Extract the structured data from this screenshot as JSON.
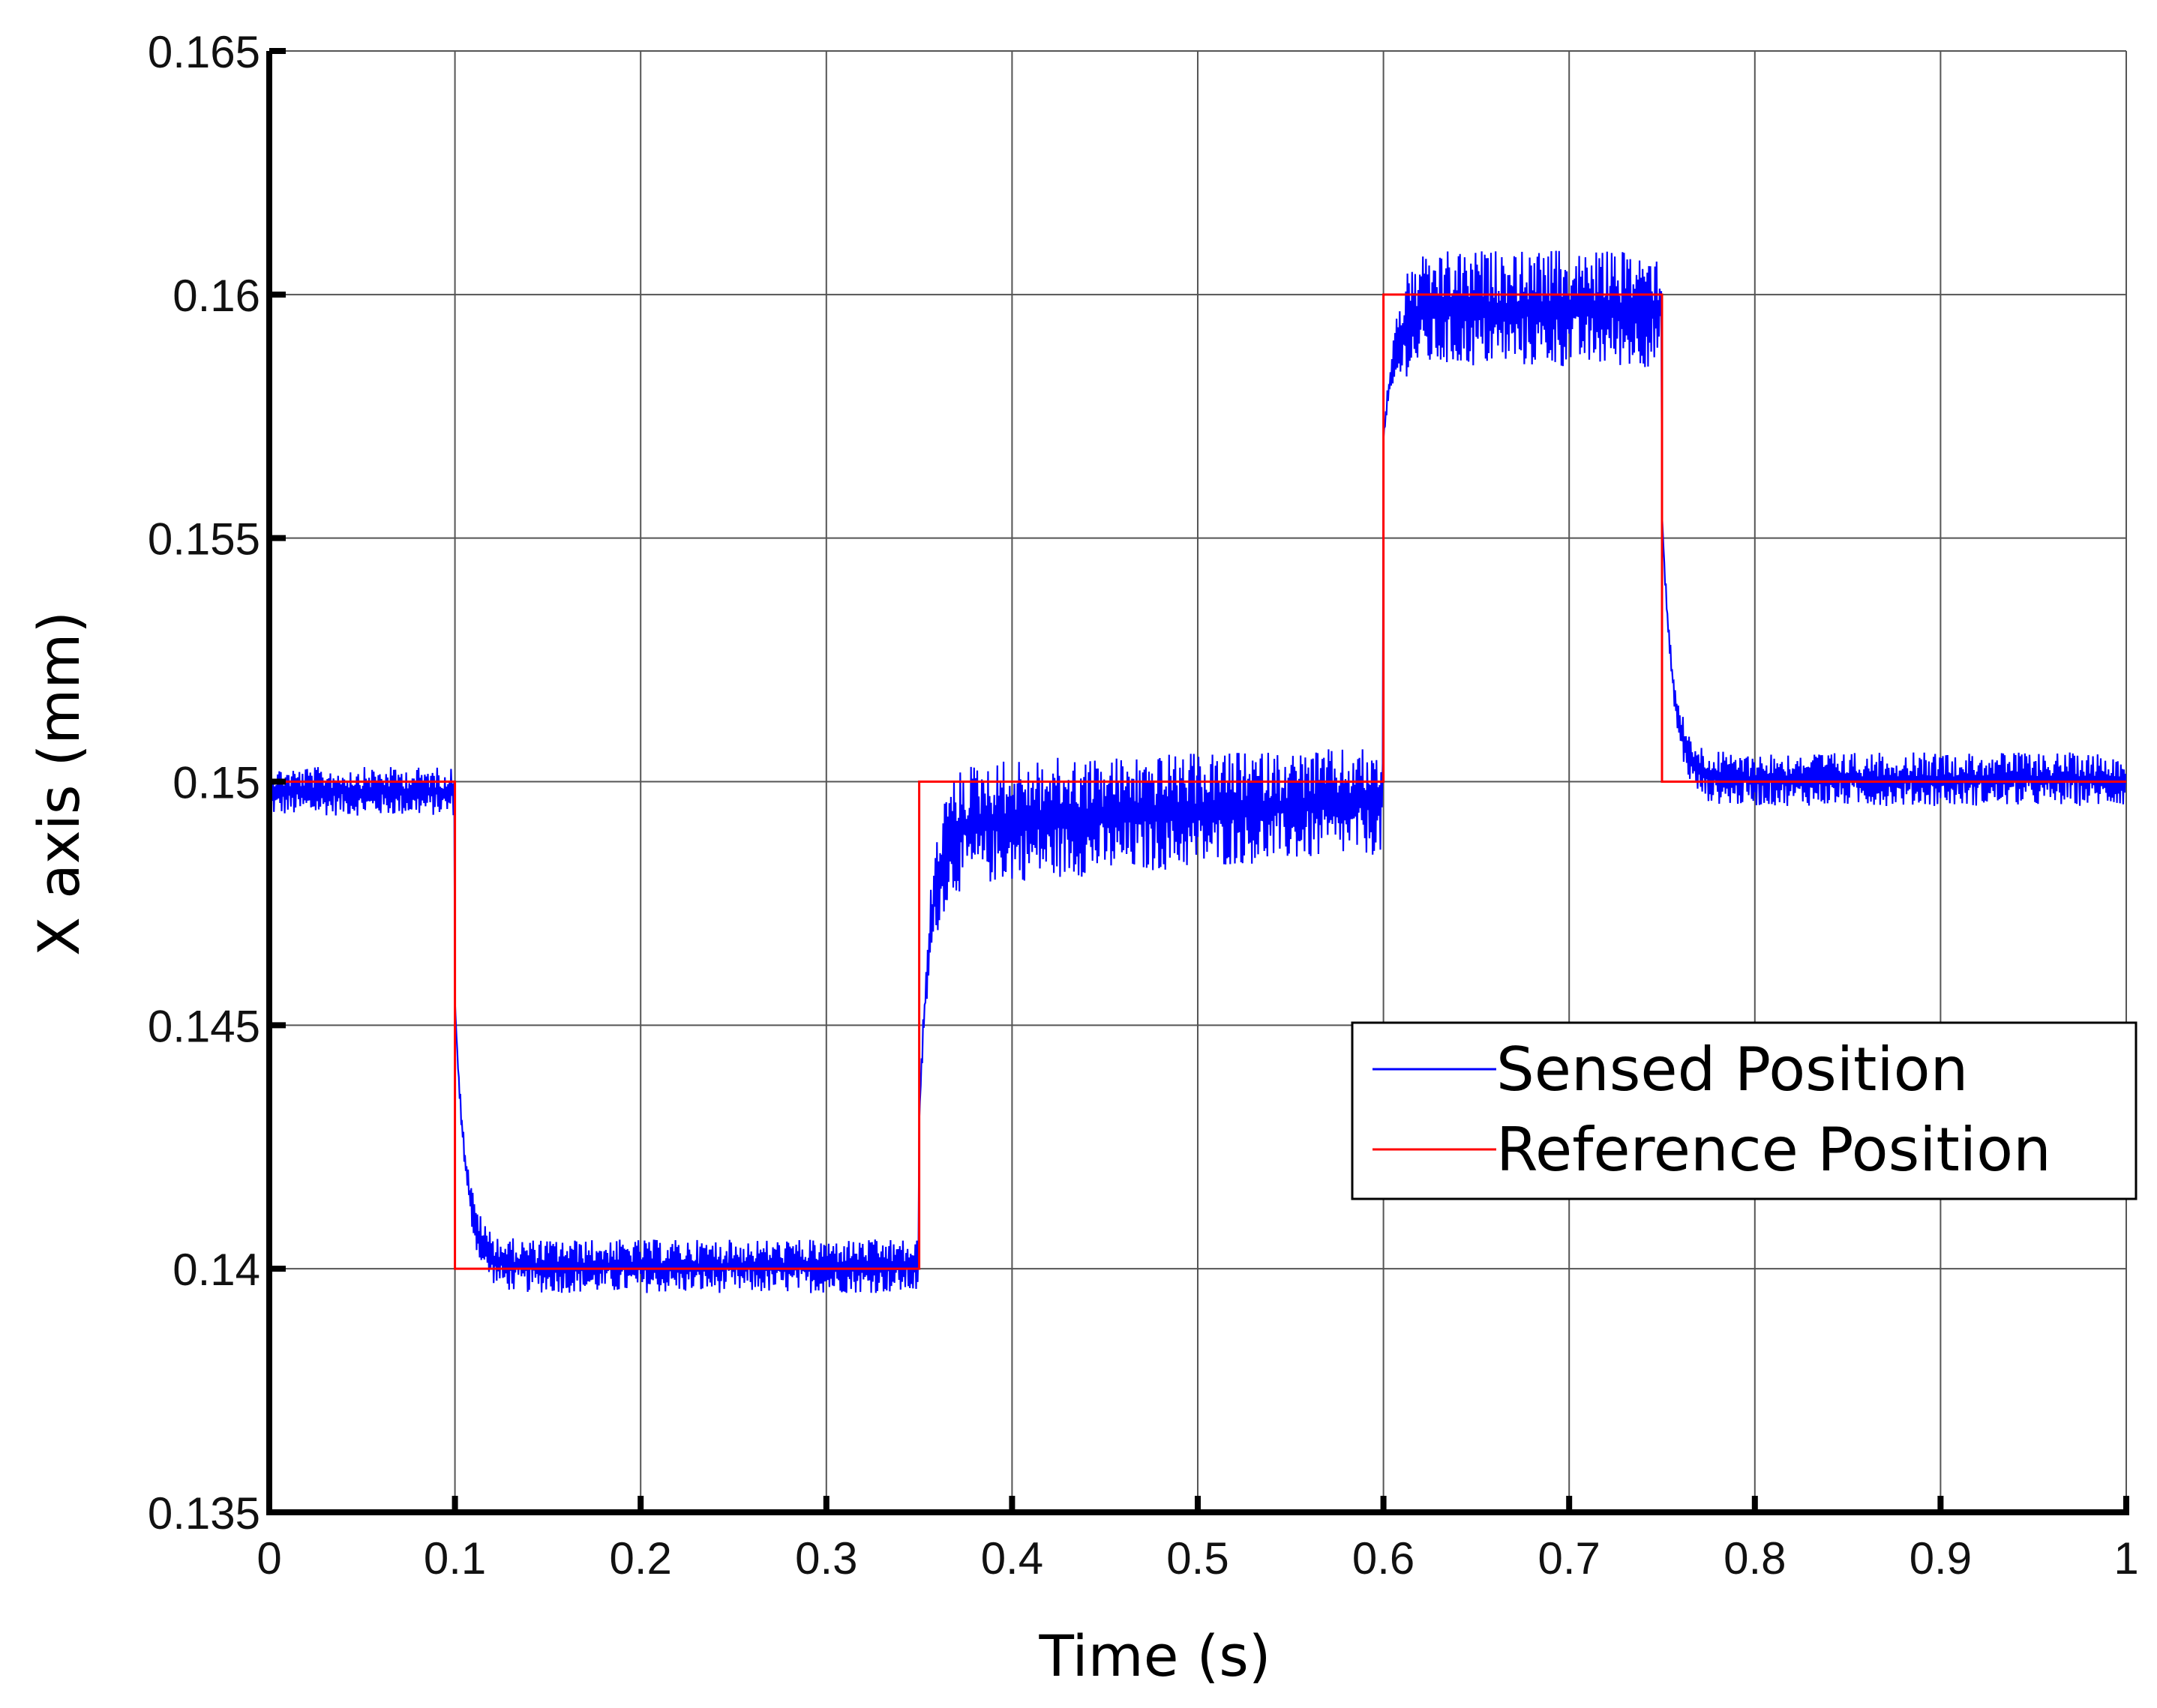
{
  "chart_data": {
    "type": "line",
    "title": "",
    "xlabel": "Time (s)",
    "ylabel": "X axis (mm)",
    "xlim": [
      0,
      1
    ],
    "ylim": [
      0.135,
      0.165
    ],
    "xticks": [
      "0",
      "0.1",
      "0.2",
      "0.3",
      "0.4",
      "0.5",
      "0.6",
      "0.7",
      "0.8",
      "0.9",
      "1"
    ],
    "xtick_values": [
      0,
      0.1,
      0.2,
      0.3,
      0.4,
      0.5,
      0.6,
      0.7,
      0.8,
      0.9,
      1
    ],
    "yticks": [
      "0.135",
      "0.14",
      "0.145",
      "0.15",
      "0.155",
      "0.16",
      "0.165"
    ],
    "ytick_values": [
      0.135,
      0.14,
      0.145,
      0.15,
      0.155,
      0.16,
      0.165
    ],
    "grid": true,
    "legend_placement": "right",
    "series": [
      {
        "name": "Sensed Position",
        "color": "#0000ff",
        "segments": [
          {
            "t": [
              0,
              0.1
            ],
            "band": [
              0.1493,
              0.1503
            ]
          },
          {
            "t": [
              0.1,
              0.35
            ],
            "band": [
              0.1395,
              0.1406
            ],
            "transient_start": 0.1455
          },
          {
            "t": [
              0.35,
              0.6
            ],
            "band_start": [
              0.1478,
              0.1504
            ],
            "band_end": [
              0.1485,
              0.1507
            ],
            "transient_start": 0.143
          },
          {
            "t": [
              0.6,
              0.75
            ],
            "band": [
              0.1585,
              0.1609
            ],
            "transient_start": 0.157
          },
          {
            "t": [
              0.75,
              1.0
            ],
            "band": [
              0.1495,
              0.1506
            ],
            "transient_start": 0.1555
          }
        ]
      },
      {
        "name": "Reference Position",
        "color": "#ff0000",
        "x": [
          0,
          0.1,
          0.1,
          0.35,
          0.35,
          0.6,
          0.6,
          0.75,
          0.75,
          1.0
        ],
        "y": [
          0.15,
          0.15,
          0.14,
          0.14,
          0.15,
          0.15,
          0.16,
          0.16,
          0.15,
          0.15
        ]
      }
    ]
  }
}
